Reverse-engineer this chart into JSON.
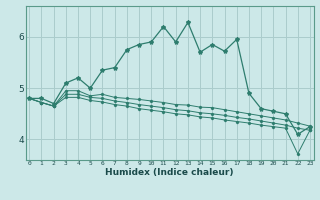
{
  "xlabel": "Humidex (Indice chaleur)",
  "bg_color": "#cce8e8",
  "grid_color": "#aacccc",
  "line_color": "#2e7d6e",
  "x_ticks": [
    0,
    1,
    2,
    3,
    4,
    5,
    6,
    7,
    8,
    9,
    10,
    11,
    12,
    13,
    14,
    15,
    16,
    17,
    18,
    19,
    20,
    21,
    22,
    23
  ],
  "y_ticks": [
    4,
    5,
    6
  ],
  "ylim": [
    3.6,
    6.6
  ],
  "xlim": [
    -0.3,
    23.3
  ],
  "series": [
    [
      4.8,
      4.8,
      4.7,
      5.1,
      5.2,
      5.0,
      5.35,
      5.4,
      5.75,
      5.85,
      5.9,
      6.2,
      5.9,
      6.28,
      5.7,
      5.85,
      5.72,
      5.95,
      4.9,
      4.6,
      4.55,
      4.5,
      4.1,
      4.25
    ],
    [
      4.8,
      4.72,
      4.65,
      4.95,
      4.95,
      4.85,
      4.88,
      4.82,
      4.8,
      4.78,
      4.75,
      4.72,
      4.68,
      4.67,
      4.63,
      4.62,
      4.58,
      4.54,
      4.5,
      4.46,
      4.42,
      4.38,
      4.32,
      4.26
    ],
    [
      4.8,
      4.72,
      4.65,
      4.88,
      4.88,
      4.82,
      4.8,
      4.75,
      4.72,
      4.68,
      4.65,
      4.62,
      4.58,
      4.56,
      4.52,
      4.5,
      4.47,
      4.43,
      4.4,
      4.36,
      4.32,
      4.28,
      4.22,
      4.18
    ],
    [
      4.8,
      4.72,
      4.65,
      4.82,
      4.82,
      4.76,
      4.73,
      4.68,
      4.65,
      4.6,
      4.57,
      4.54,
      4.5,
      4.48,
      4.44,
      4.42,
      4.38,
      4.35,
      4.32,
      4.28,
      4.25,
      4.22,
      3.72,
      4.18
    ]
  ]
}
